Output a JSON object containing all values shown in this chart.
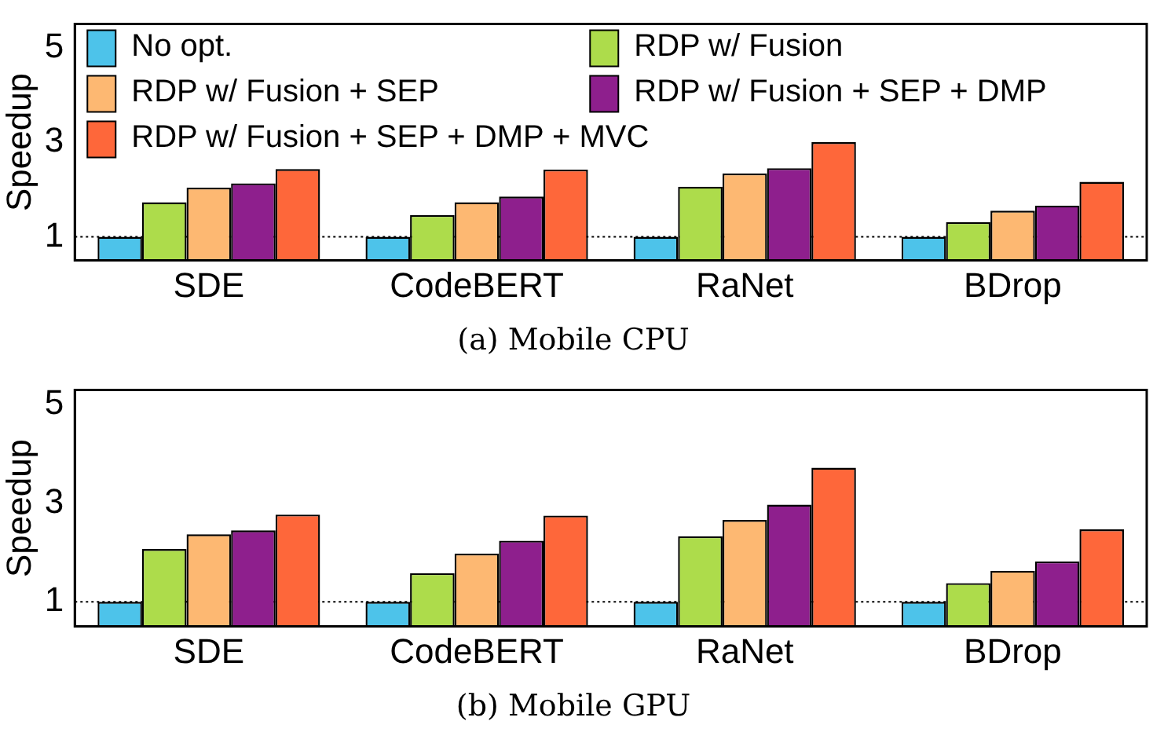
{
  "chart_data": [
    {
      "type": "bar",
      "title": "(a) Mobile CPU",
      "ylabel": "Speedup",
      "categories": [
        "SDE",
        "CodeBERT",
        "RaNet",
        "BDrop"
      ],
      "series": [
        {
          "name": "No opt.",
          "color": "#4dc3ea",
          "values": [
            1,
            1,
            1,
            1
          ]
        },
        {
          "name": "RDP w/ Fusion",
          "color": "#addc4b",
          "values": [
            1.73,
            1.46,
            2.06,
            1.31
          ]
        },
        {
          "name": "RDP w/ Fusion + SEP",
          "color": "#fdb872",
          "values": [
            2.04,
            1.73,
            2.34,
            1.55
          ]
        },
        {
          "name": "RDP w/ Fusion + SEP + DMP",
          "color": "#8e1f8d",
          "values": [
            2.13,
            1.85,
            2.45,
            1.66
          ]
        },
        {
          "name": "RDP w/ Fusion + SEP + DMP + MVC",
          "color": "#fe673a",
          "values": [
            2.43,
            2.42,
            3.0,
            2.16
          ]
        }
      ],
      "ylim": [
        0.5,
        5.5
      ],
      "yticks": [
        1,
        3,
        5
      ],
      "grid": false,
      "legend": "top left",
      "ref_lines": [
        {
          "axis": "y",
          "value": 1,
          "color": "#000000",
          "line_style": "dotted"
        }
      ]
    },
    {
      "type": "bar",
      "title": "(b) Mobile GPU",
      "ylabel": "Speedup",
      "categories": [
        "SDE",
        "CodeBERT",
        "RaNet",
        "BDrop"
      ],
      "series": [
        {
          "color": "#4dc3ea",
          "values": [
            1,
            1,
            1,
            1
          ]
        },
        {
          "color": "#addc4b",
          "values": [
            2.07,
            1.58,
            2.33,
            1.38
          ]
        },
        {
          "color": "#fdb872",
          "values": [
            2.37,
            1.98,
            2.66,
            1.63
          ]
        },
        {
          "color": "#8e1f8d",
          "values": [
            2.45,
            2.24,
            2.97,
            1.82
          ]
        },
        {
          "color": "#fe673a",
          "values": [
            2.77,
            2.75,
            3.72,
            2.47
          ]
        }
      ],
      "ylim": [
        0.5,
        5.3
      ],
      "yticks": [
        1,
        3,
        5
      ],
      "grid": false,
      "legend": false,
      "ref_lines": [
        {
          "axis": "y",
          "value": 1,
          "color": "#000000",
          "line_style": "dotted"
        }
      ]
    }
  ]
}
